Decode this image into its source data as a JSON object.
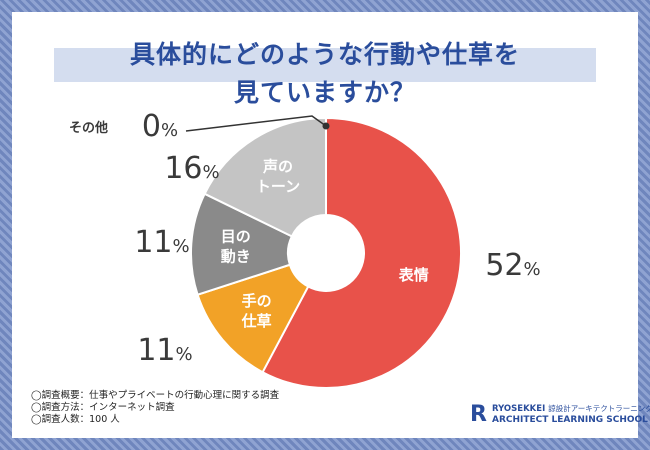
{
  "title": {
    "line1": "具体的にどのような行動や仕草を",
    "line2": "見ていますか？"
  },
  "chart_data": {
    "type": "pie",
    "donut": true,
    "categories": [
      "表情",
      "手の仕草",
      "目の動き",
      "声のトーン",
      "その他"
    ],
    "slice_labels": [
      [
        "表情"
      ],
      [
        "手の",
        "仕草"
      ],
      [
        "目の",
        "動き"
      ],
      [
        "声の",
        "トーン"
      ],
      [
        "その他"
      ]
    ],
    "values": [
      52,
      11,
      11,
      16,
      0
    ],
    "percent_labels": [
      "52",
      "11",
      "11",
      "16",
      "0"
    ],
    "percent_sign": "%",
    "colors": [
      "#e8524a",
      "#f2a227",
      "#8a8a8a",
      "#c4c4c4",
      "#dddddd"
    ]
  },
  "notes": [
    "◯調査概要：仕事やプライベートの行動心理に関する調査",
    "◯調査方法：インターネット調査",
    "◯調査人数：100 人"
  ],
  "logo": {
    "mark": "R",
    "name": "RYOSEKKEI",
    "sub": "諒設計アーキテクトラーニング",
    "line2": "ARCHITECT LEARNING SCHOOL",
    "color": "#2a4d9c"
  }
}
